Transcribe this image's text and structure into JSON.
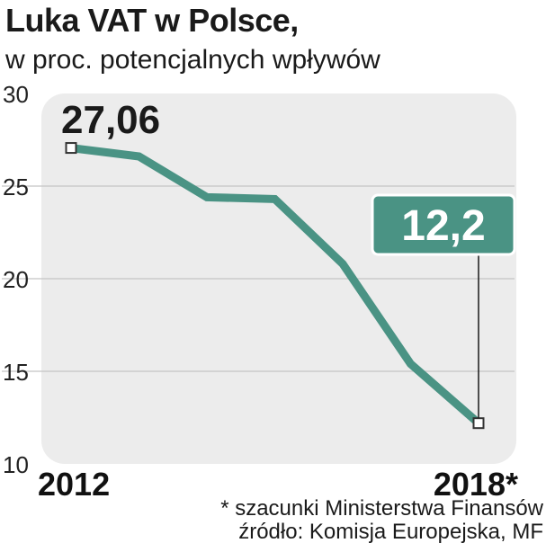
{
  "title": "Luka VAT w Polsce,",
  "subtitle": "w proc. potencjalnych wpływów",
  "footnote": {
    "line1": "* szacunki Ministerstwa Finansów",
    "line2": "źródło: Komisja Europejska, MF"
  },
  "colors": {
    "line": "#4a9384",
    "plot_background": "#ececec",
    "gridline": "#c4c4c4",
    "callout_fill": "#4a9384",
    "callout_text": "#ffffff"
  },
  "chart_data": {
    "type": "line",
    "title": "Luka VAT w Polsce,",
    "subtitle": "w proc. potencjalnych wpływów",
    "x_tick_labels": [
      "2012",
      "2018*"
    ],
    "x": [
      2012,
      2013,
      2014,
      2015,
      2016,
      2017,
      2018
    ],
    "series": [
      {
        "values": [
          27.06,
          26.6,
          24.4,
          24.3,
          20.8,
          15.4,
          12.2
        ]
      }
    ],
    "ylim": [
      10,
      30
    ],
    "y_ticks": [
      10,
      15,
      20,
      25,
      30
    ],
    "grid": true,
    "annotations": [
      {
        "x": 2012,
        "text": "27,06"
      },
      {
        "x": 2018,
        "text": "12,2"
      }
    ]
  }
}
